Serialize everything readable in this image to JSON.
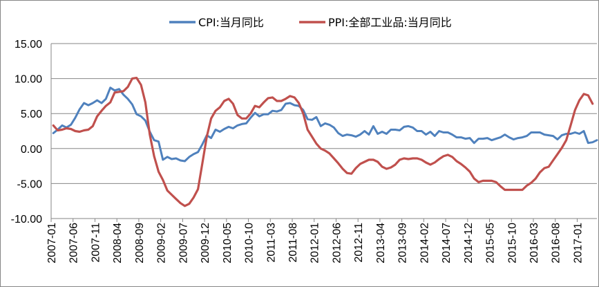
{
  "chart_data": {
    "type": "line",
    "title": "",
    "xlabel": "",
    "ylabel": "",
    "ylim": [
      -10,
      15
    ],
    "y_ticks": [
      "15.00",
      "10.00",
      "5.00",
      "0.00",
      "-5.00",
      "-10.00"
    ],
    "x_tick_labels": [
      "2007-01",
      "2007-06",
      "2007-11",
      "2008-04",
      "2008-09",
      "2009-02",
      "2009-07",
      "2009-12",
      "2010-05",
      "2010-10",
      "2011-03",
      "2011-08",
      "2012-01",
      "2012-06",
      "2012-11",
      "2013-04",
      "2013-09",
      "2014-02",
      "2014-07",
      "2014-12",
      "2015-05",
      "2015-10",
      "2016-03",
      "2016-08",
      "2017-01"
    ],
    "start_month": "2007-01",
    "grid": "horizontal",
    "legend_position": "top",
    "series": [
      {
        "name": "CPI:当月同比",
        "color": "#4f81bd",
        "values": [
          2.2,
          2.7,
          3.3,
          3.0,
          3.4,
          4.4,
          5.6,
          6.5,
          6.2,
          6.5,
          6.9,
          6.5,
          7.1,
          8.7,
          8.3,
          8.5,
          7.7,
          7.1,
          6.3,
          4.9,
          4.6,
          4.0,
          2.4,
          1.2,
          1.0,
          -1.6,
          -1.2,
          -1.5,
          -1.4,
          -1.7,
          -1.8,
          -1.2,
          -0.8,
          -0.5,
          0.6,
          1.9,
          1.5,
          2.7,
          2.4,
          2.8,
          3.1,
          2.9,
          3.3,
          3.5,
          3.6,
          4.4,
          5.1,
          4.6,
          4.9,
          4.9,
          5.4,
          5.3,
          5.5,
          6.4,
          6.5,
          6.2,
          6.1,
          5.5,
          4.2,
          4.1,
          4.5,
          3.2,
          3.6,
          3.4,
          3.0,
          2.2,
          1.8,
          2.0,
          1.9,
          1.7,
          2.0,
          2.5,
          2.0,
          3.2,
          2.1,
          2.4,
          2.1,
          2.7,
          2.7,
          2.6,
          3.1,
          3.2,
          3.0,
          2.5,
          2.5,
          2.0,
          2.4,
          1.8,
          2.5,
          2.3,
          2.3,
          2.0,
          1.6,
          1.6,
          1.4,
          1.5,
          0.8,
          1.4,
          1.4,
          1.5,
          1.2,
          1.4,
          1.6,
          2.0,
          1.6,
          1.3,
          1.5,
          1.6,
          1.8,
          2.3,
          2.3,
          2.3,
          2.0,
          1.9,
          1.8,
          1.3,
          1.9,
          2.1,
          2.1,
          2.3,
          2.1,
          2.5,
          0.8,
          0.9,
          1.2
        ]
      },
      {
        "name": "PPI:全部工业品:当月同比",
        "color": "#c0504d",
        "values": [
          3.3,
          2.6,
          2.7,
          2.9,
          2.8,
          2.5,
          2.4,
          2.6,
          2.7,
          3.2,
          4.6,
          5.4,
          6.1,
          6.6,
          8.0,
          8.1,
          8.2,
          8.8,
          10.0,
          10.1,
          9.1,
          6.6,
          2.0,
          -1.1,
          -3.3,
          -4.5,
          -6.0,
          -6.6,
          -7.2,
          -7.8,
          -8.2,
          -7.9,
          -7.0,
          -5.8,
          -2.1,
          1.7,
          4.3,
          5.4,
          5.9,
          6.8,
          7.1,
          6.4,
          4.8,
          4.3,
          4.3,
          5.0,
          6.1,
          5.9,
          6.6,
          7.2,
          7.3,
          6.8,
          6.8,
          7.1,
          7.5,
          7.3,
          6.5,
          5.0,
          2.7,
          1.7,
          0.7,
          0.0,
          -0.3,
          -0.7,
          -1.4,
          -2.1,
          -2.9,
          -3.5,
          -3.6,
          -2.8,
          -2.2,
          -1.9,
          -1.6,
          -1.6,
          -1.9,
          -2.6,
          -2.9,
          -2.7,
          -2.3,
          -1.6,
          -1.4,
          -1.5,
          -1.4,
          -1.4,
          -1.6,
          -2.0,
          -2.3,
          -2.0,
          -1.5,
          -1.1,
          -0.9,
          -1.2,
          -1.8,
          -2.2,
          -2.7,
          -3.3,
          -4.3,
          -4.8,
          -4.6,
          -4.6,
          -4.6,
          -4.8,
          -5.4,
          -5.9,
          -5.9,
          -5.9,
          -5.9,
          -5.9,
          -5.3,
          -4.9,
          -4.3,
          -3.4,
          -2.8,
          -2.6,
          -1.7,
          -0.8,
          0.1,
          1.2,
          3.3,
          5.5,
          6.9,
          7.8,
          7.6,
          6.4
        ]
      }
    ]
  }
}
